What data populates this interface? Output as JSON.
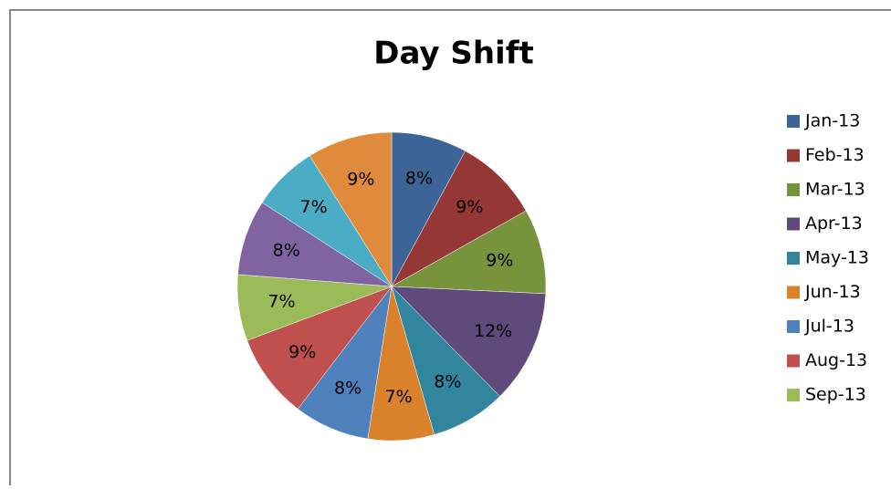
{
  "chart_data": {
    "type": "pie",
    "title": "Day Shift",
    "categories": [
      "Jan-13",
      "Feb-13",
      "Mar-13",
      "Apr-13",
      "May-13",
      "Jun-13",
      "Jul-13",
      "Aug-13",
      "Sep-13",
      null,
      null,
      null
    ],
    "values": [
      8,
      9,
      9,
      12,
      8,
      7,
      8,
      9,
      7,
      8,
      7,
      9
    ],
    "value_labels": [
      "8%",
      "9%",
      "9%",
      "12%",
      "8%",
      "7%",
      "8%",
      "9%",
      "7%",
      "8%",
      "7%",
      "9%"
    ],
    "colors": [
      "#3c6496",
      "#953735",
      "#77933c",
      "#604a7b",
      "#31859c",
      "#d9822b",
      "#4f81bd",
      "#c0504d",
      "#9bbb59",
      "#8064a2",
      "#4bacc6",
      "#e08a3c"
    ],
    "legend": "right"
  }
}
